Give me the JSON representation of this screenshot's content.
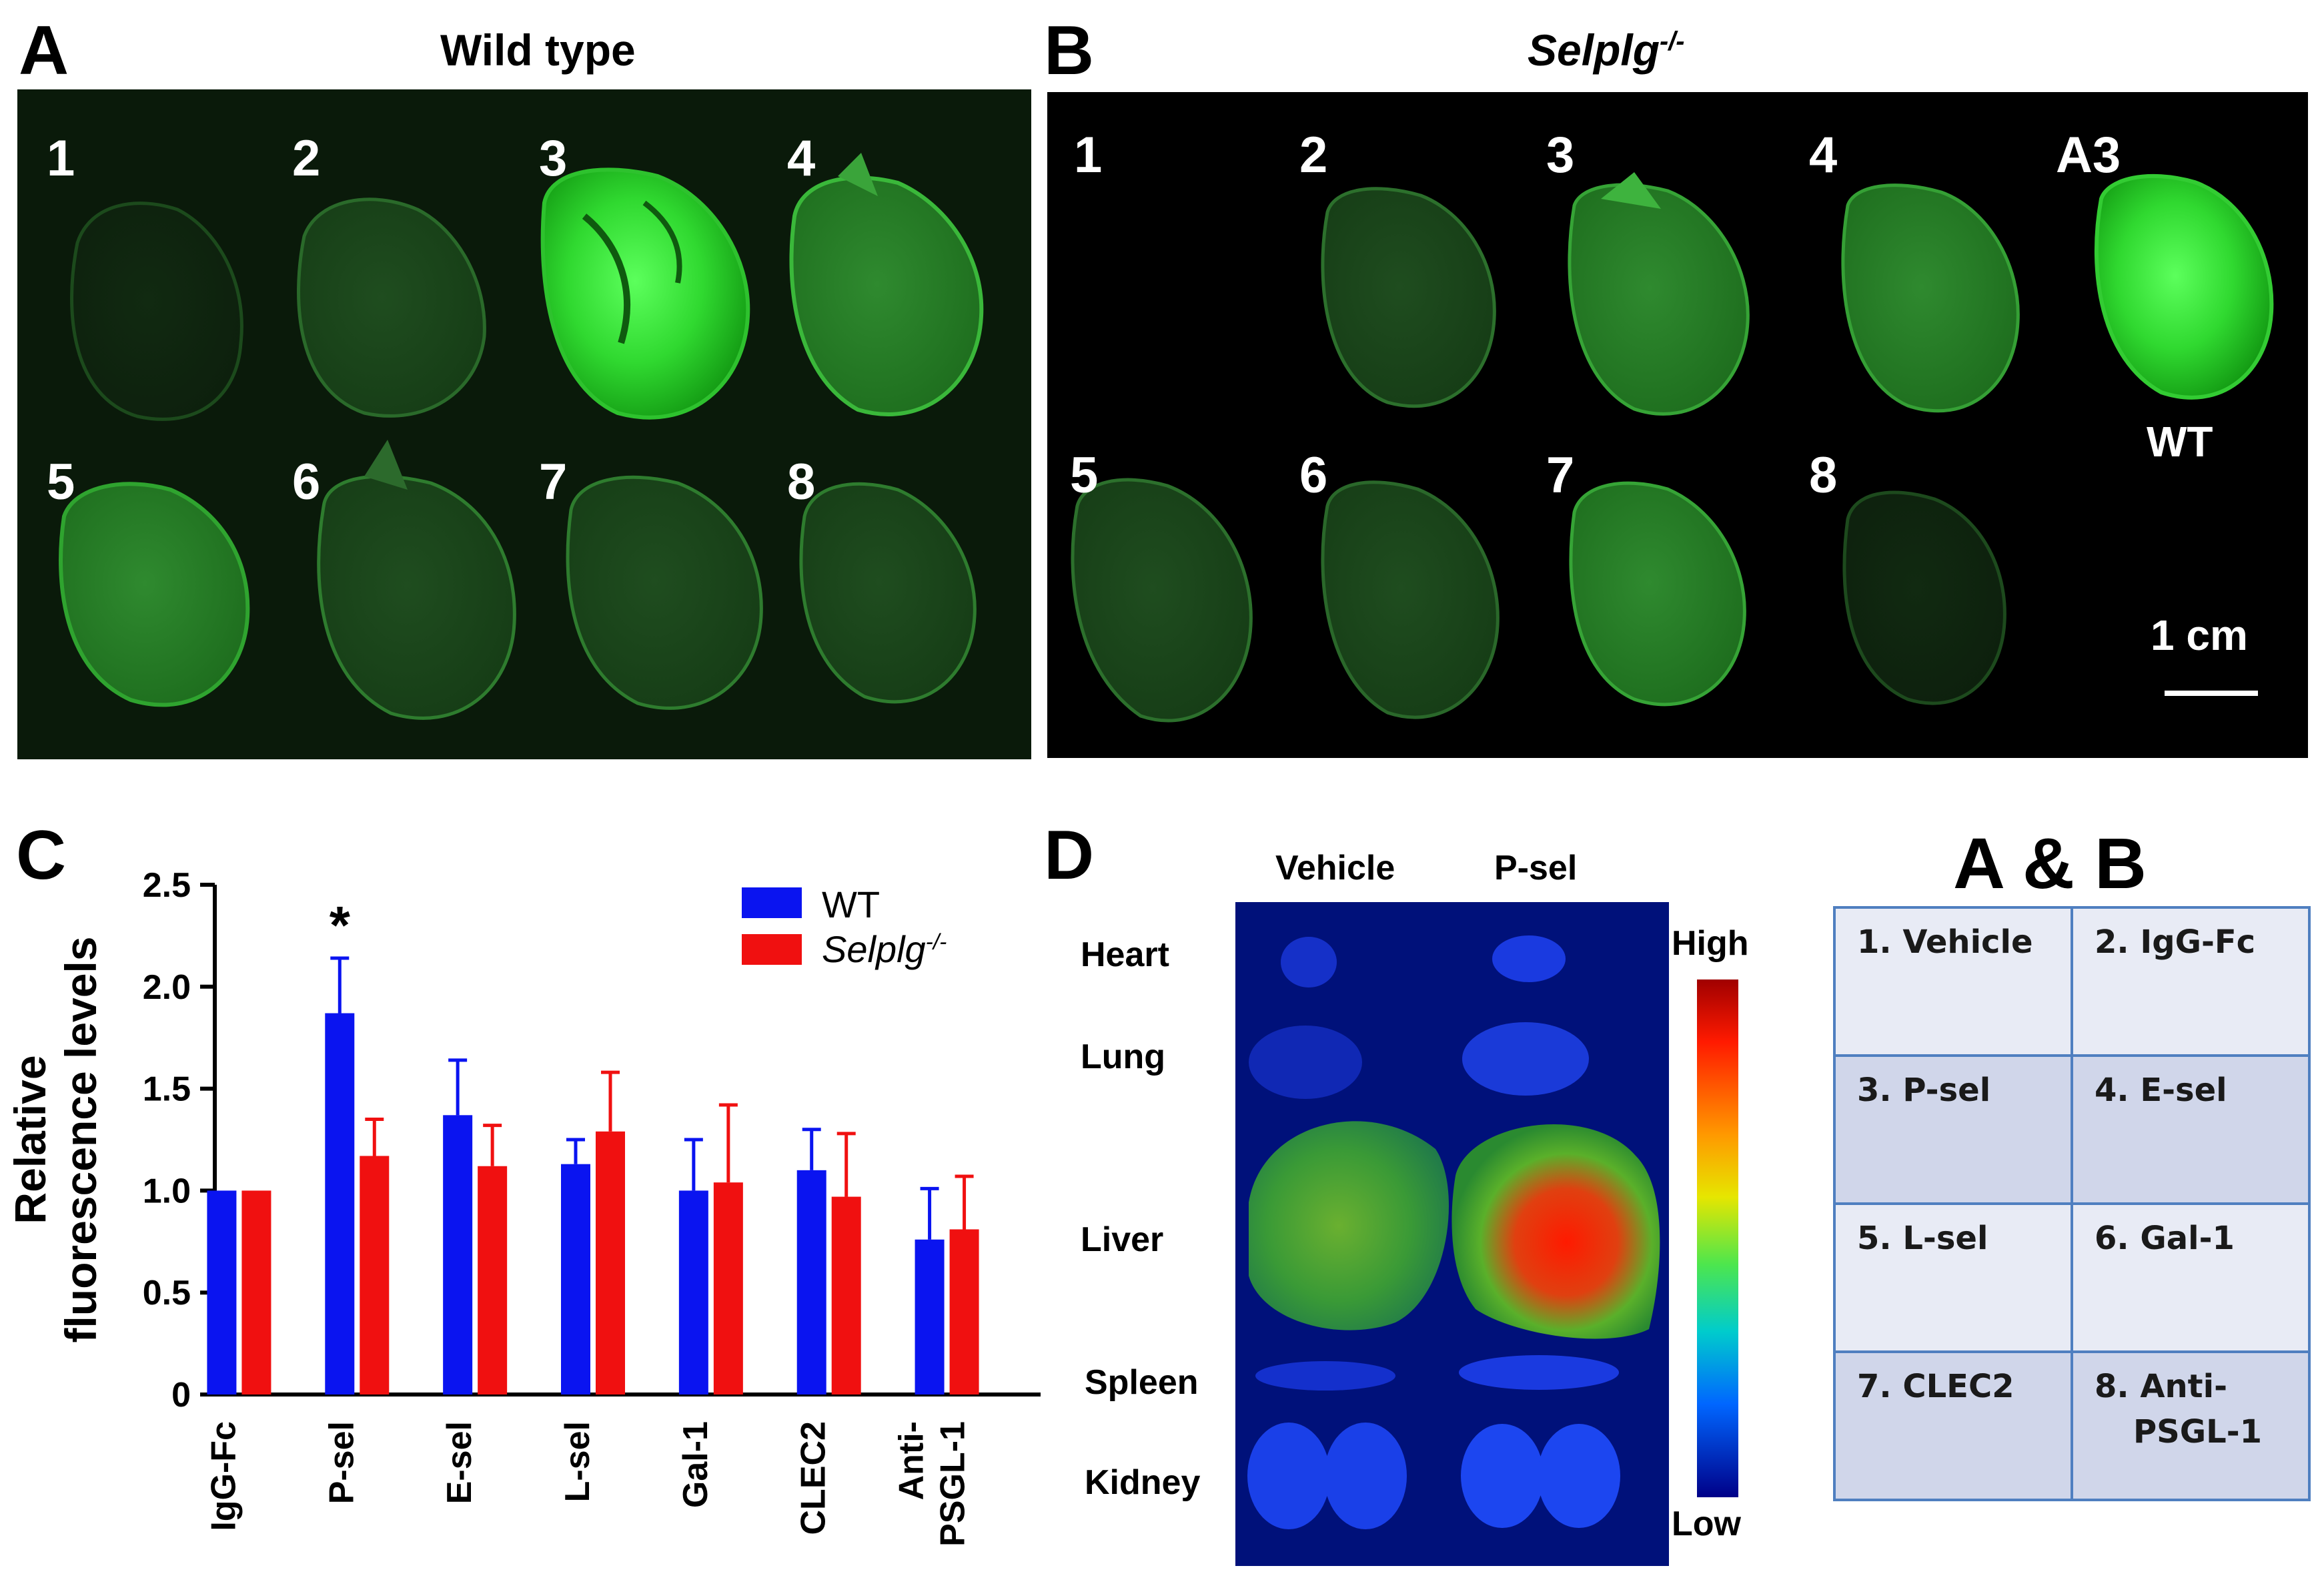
{
  "panelA": {
    "letter": "A",
    "title": "Wild type",
    "labels": [
      "1",
      "2",
      "3",
      "4",
      "5",
      "6",
      "7",
      "8"
    ]
  },
  "panelB": {
    "letter": "B",
    "title_main": "Selplg",
    "title_sup": "-/-",
    "labels": [
      "1",
      "2",
      "3",
      "4",
      "5",
      "6",
      "7",
      "8"
    ],
    "ref_label": "A3",
    "ref_sub": "WT",
    "scale_label": "1 cm"
  },
  "panelC": {
    "letter": "C",
    "legend": {
      "wt": "WT",
      "ko_main": "Selplg",
      "ko_sup": "-/-"
    },
    "significance": "*"
  },
  "panelD": {
    "letter": "D",
    "columns": [
      "Vehicle",
      "P-sel"
    ],
    "organs": [
      "Heart",
      "Lung",
      "Liver",
      "Spleen",
      "Kidney"
    ],
    "scale_high": "High",
    "scale_low": "Low"
  },
  "legend_table": {
    "title": "A & B",
    "cells": [
      {
        "text": "1. Vehicle"
      },
      {
        "text": "2. IgG-Fc"
      },
      {
        "text": "3. P-sel"
      },
      {
        "text": "4. E-sel"
      },
      {
        "text": "5. L-sel"
      },
      {
        "text": "6. Gal-1"
      },
      {
        "text": "7. CLEC2"
      },
      {
        "text": "8. Anti-",
        "text2": "PSGL-1"
      }
    ]
  },
  "colors": {
    "wt": "#0a14f0",
    "ko": "#f01010",
    "fluor": "#33e633",
    "table_border": "#4f7fc0"
  },
  "chart_data": {
    "type": "bar",
    "categories": [
      "IgG-Fc",
      "P-sel",
      "E-sel",
      "L-sel",
      "Gal-1",
      "CLEC2",
      "Anti-\nPSGL-1"
    ],
    "category_lines": [
      [
        "IgG-Fc"
      ],
      [
        "P-sel"
      ],
      [
        "E-sel"
      ],
      [
        "L-sel"
      ],
      [
        "Gal-1"
      ],
      [
        "CLEC2"
      ],
      [
        "Anti-",
        "PSGL-1"
      ]
    ],
    "series": [
      {
        "name": "WT",
        "values": [
          1.0,
          1.87,
          1.37,
          1.13,
          1.0,
          1.1,
          0.76
        ],
        "errors": [
          0,
          0.27,
          0.27,
          0.12,
          0.25,
          0.2,
          0.25
        ]
      },
      {
        "name": "Selplg-/-",
        "values": [
          1.0,
          1.17,
          1.12,
          1.29,
          1.04,
          0.97,
          0.81
        ],
        "errors": [
          0,
          0.18,
          0.2,
          0.29,
          0.38,
          0.31,
          0.26
        ]
      }
    ],
    "ylabel_lines": [
      "Relative",
      "fluorescence levels"
    ],
    "yticks": [
      "0",
      "0.5",
      "1.0",
      "1.5",
      "2.0",
      "2.5"
    ],
    "ylim": [
      0,
      2.5
    ],
    "legend": "top-right",
    "significance": [
      {
        "category": "P-sel",
        "series": "WT",
        "mark": "*"
      }
    ]
  }
}
